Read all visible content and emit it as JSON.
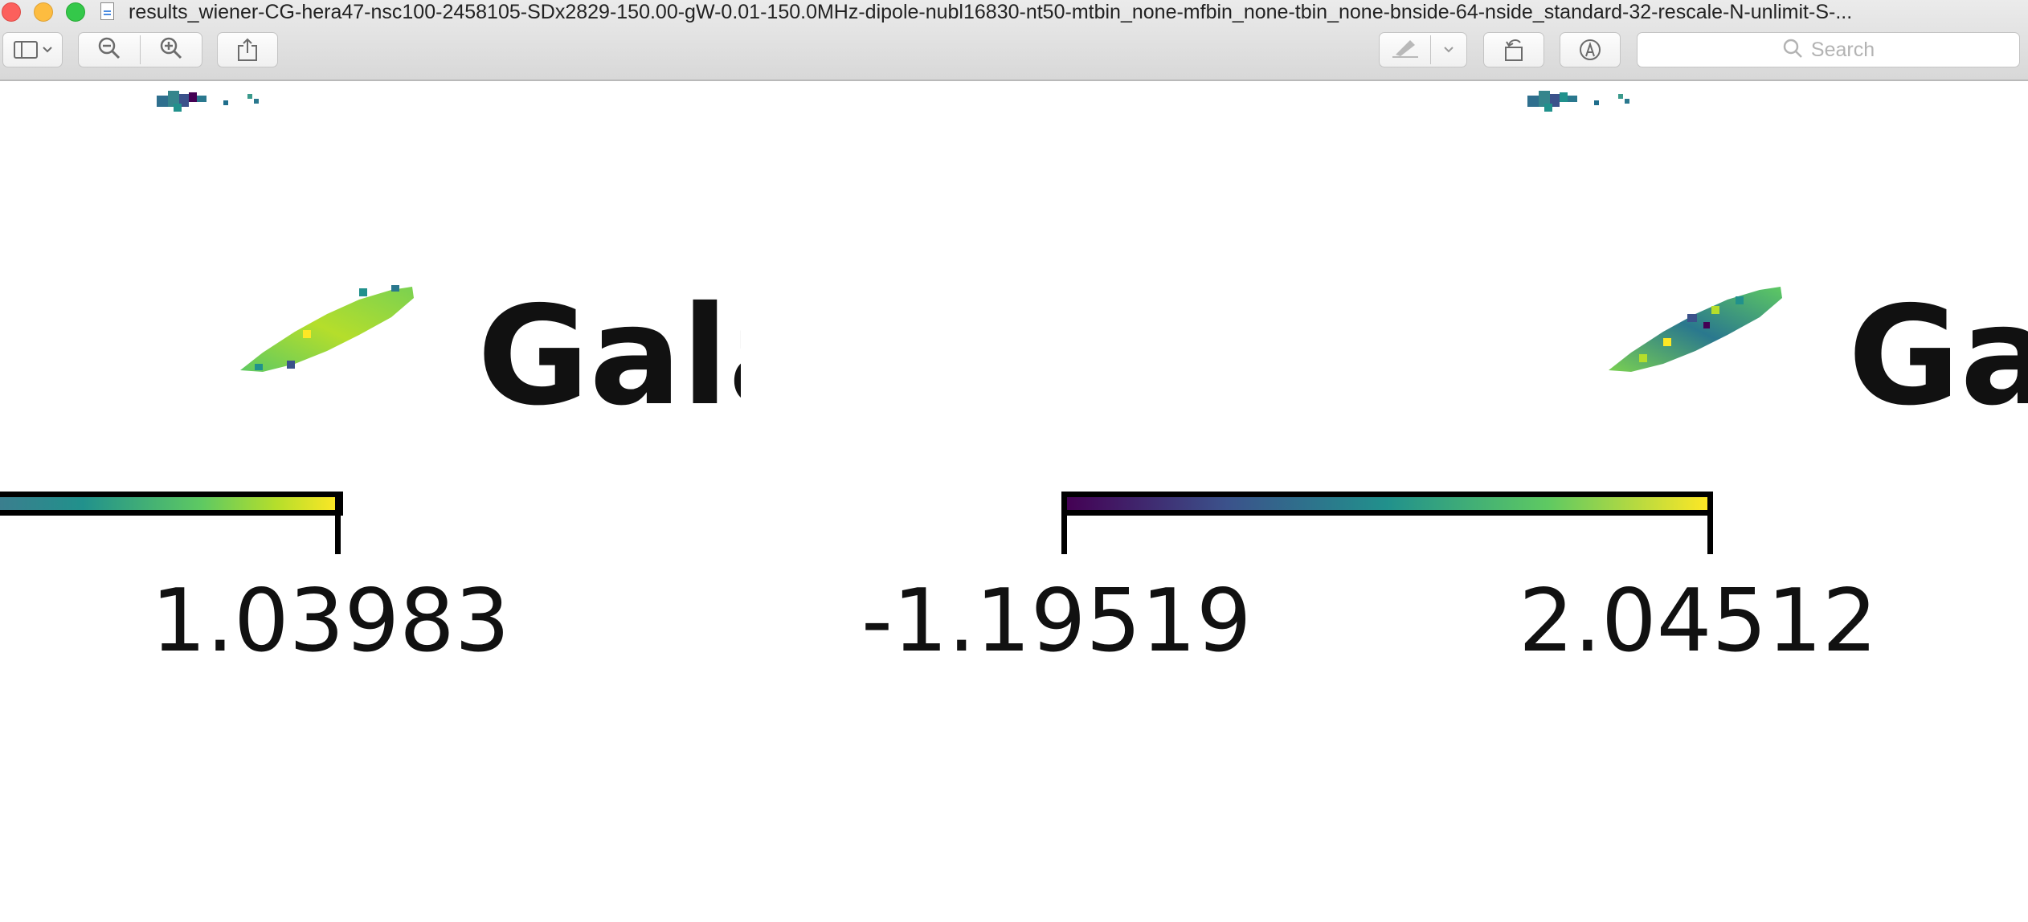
{
  "window": {
    "title": "results_wiener-CG-hera47-nsc100-2458105-SDx2829-150.00-gW-0.01-150.0MHz-dipole-nubl16830-nt50-mtbin_none-mfbin_none-tbin_none-bnside-64-nside_standard-32-rescale-N-unlimit-S-..."
  },
  "toolbar": {
    "search": {
      "placeholder": "Search"
    },
    "icons": [
      "sidebar-icon",
      "chevron-down-icon",
      "zoom-out-icon",
      "zoom-in-icon",
      "share-icon",
      "markup-pen-icon",
      "chevron-down-icon",
      "rotate-icon",
      "annotate-icon",
      "search-icon"
    ]
  },
  "document": {
    "panels": [
      {
        "label": "Gala",
        "colormap": [
          "#3b5f8e",
          "#21918c",
          "#5ec962",
          "#a5db36",
          "#fde725"
        ],
        "colorbar": {
          "max_label": "1.03983"
        }
      },
      {
        "label": "Ga",
        "colormap": [
          "#440154",
          "#3b528b",
          "#21918c",
          "#5ec962",
          "#fde725"
        ],
        "colorbar": {
          "min_label": "-1.19519",
          "max_label": "2.04512"
        }
      }
    ]
  }
}
